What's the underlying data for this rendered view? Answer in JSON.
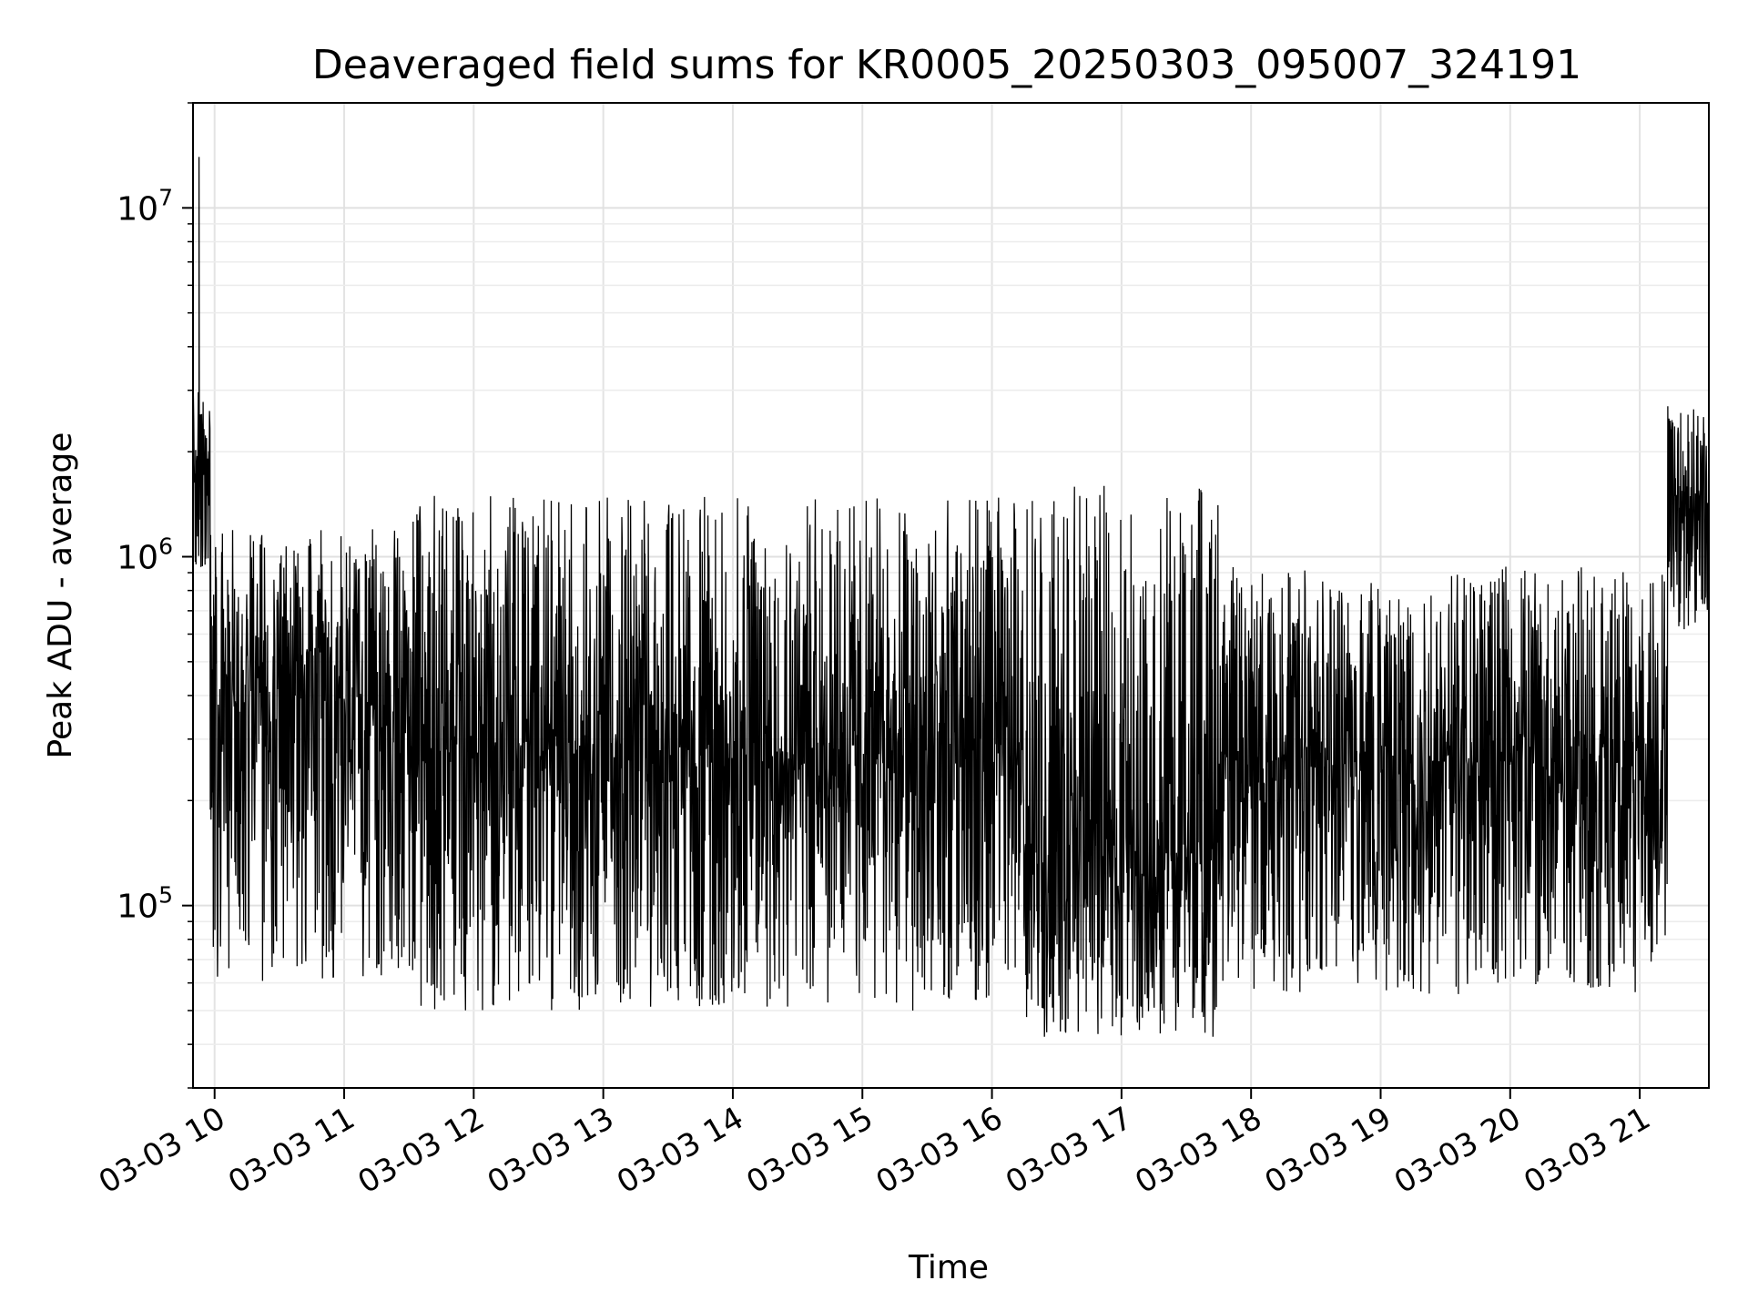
{
  "chart_data": {
    "type": "line",
    "title": "Deaveraged field sums for KR0005_20250303_095007_324191",
    "xlabel": "Time",
    "ylabel": "Peak ADU - average",
    "yscale": "log",
    "grid": true,
    "ylim": [
      30000,
      20000000
    ],
    "xlim": [
      "2025-03-03 09:50",
      "2025-03-03 21:32"
    ],
    "x_ticks": [
      {
        "value": "2025-03-03 10:00",
        "label": "03-03 10"
      },
      {
        "value": "2025-03-03 11:00",
        "label": "03-03 11"
      },
      {
        "value": "2025-03-03 12:00",
        "label": "03-03 12"
      },
      {
        "value": "2025-03-03 13:00",
        "label": "03-03 13"
      },
      {
        "value": "2025-03-03 14:00",
        "label": "03-03 14"
      },
      {
        "value": "2025-03-03 15:00",
        "label": "03-03 15"
      },
      {
        "value": "2025-03-03 16:00",
        "label": "03-03 16"
      },
      {
        "value": "2025-03-03 17:00",
        "label": "03-03 17"
      },
      {
        "value": "2025-03-03 18:00",
        "label": "03-03 18"
      },
      {
        "value": "2025-03-03 19:00",
        "label": "03-03 19"
      },
      {
        "value": "2025-03-03 20:00",
        "label": "03-03 20"
      },
      {
        "value": "2025-03-03 21:00",
        "label": "03-03 21"
      }
    ],
    "y_ticks": [
      {
        "value": 100000,
        "base": "10",
        "exp": "5"
      },
      {
        "value": 1000000,
        "base": "10",
        "exp": "6"
      },
      {
        "value": 10000000,
        "base": "10",
        "exp": "7"
      }
    ],
    "series": [
      {
        "color": "#000000",
        "segments": [
          {
            "start": "2025-03-03 09:50",
            "end": "2025-03-03 09:58",
            "median": 1800000,
            "low": 900000,
            "high": 3000000,
            "spike_max": 14000000
          },
          {
            "start": "2025-03-03 09:58",
            "end": "2025-03-03 11:30",
            "median": 380000,
            "low": 60000,
            "high": 1200000
          },
          {
            "start": "2025-03-03 11:30",
            "end": "2025-03-03 16:15",
            "median": 280000,
            "low": 50000,
            "high": 1500000
          },
          {
            "start": "2025-03-03 16:15",
            "end": "2025-03-03 17:45",
            "median": 150000,
            "low": 42000,
            "high": 1600000
          },
          {
            "start": "2025-03-03 17:45",
            "end": "2025-03-03 21:13",
            "median": 260000,
            "low": 55000,
            "high": 950000
          },
          {
            "start": "2025-03-03 21:13",
            "end": "2025-03-03 21:32",
            "median": 1500000,
            "low": 600000,
            "high": 2800000
          }
        ]
      }
    ]
  }
}
